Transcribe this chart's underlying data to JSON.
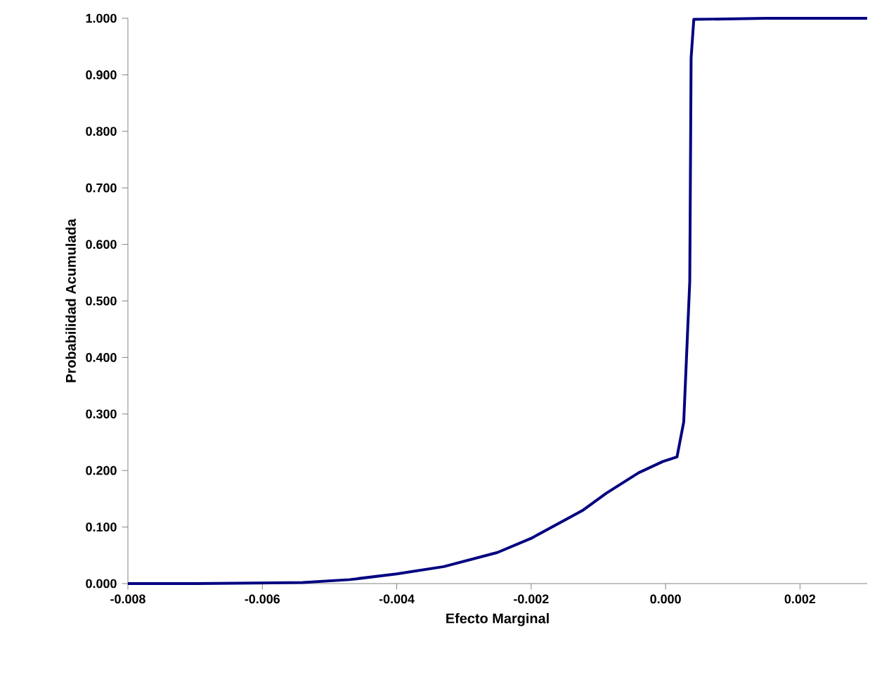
{
  "chart_data": {
    "type": "line",
    "xlabel": "Efecto Marginal",
    "ylabel": "Probabilidad Acumulada",
    "xlim": [
      -0.008,
      0.003
    ],
    "ylim": [
      0,
      1
    ],
    "xticks": [
      {
        "value": -0.008,
        "label": "-0.008"
      },
      {
        "value": -0.006,
        "label": "-0.006"
      },
      {
        "value": -0.004,
        "label": "-0.004"
      },
      {
        "value": -0.002,
        "label": "-0.002"
      },
      {
        "value": 0,
        "label": "0.000"
      },
      {
        "value": 0.002,
        "label": "0.002"
      }
    ],
    "yticks": [
      {
        "value": 0,
        "label": "0.000"
      },
      {
        "value": 0.1,
        "label": "0.100"
      },
      {
        "value": 0.2,
        "label": "0.200"
      },
      {
        "value": 0.3,
        "label": "0.300"
      },
      {
        "value": 0.4,
        "label": "0.400"
      },
      {
        "value": 0.5,
        "label": "0.500"
      },
      {
        "value": 0.6,
        "label": "0.600"
      },
      {
        "value": 0.7,
        "label": "0.700"
      },
      {
        "value": 0.8,
        "label": "0.800"
      },
      {
        "value": 0.9,
        "label": "0.900"
      },
      {
        "value": 1,
        "label": "1.000"
      }
    ],
    "grid": false,
    "marker": "none",
    "line_style": "solid",
    "series": [
      {
        "color": "#000080",
        "x": [
          -0.008,
          -0.007,
          -0.0061,
          -0.0054,
          -0.0047,
          -0.004,
          -0.0033,
          -0.0025,
          -0.002,
          -0.00124,
          -0.00088,
          -0.0004,
          -4e-05,
          0.00017,
          0.00027,
          0.00036,
          0.00038,
          0.00042,
          0.0015,
          0.003
        ],
        "values": [
          0,
          0,
          0.001,
          0.002,
          0.007,
          0.017,
          0.03,
          0.055,
          0.08,
          0.129,
          0.16,
          0.196,
          0.216,
          0.224,
          0.286,
          0.535,
          0.93,
          0.998,
          1.0,
          1.0
        ]
      }
    ]
  }
}
